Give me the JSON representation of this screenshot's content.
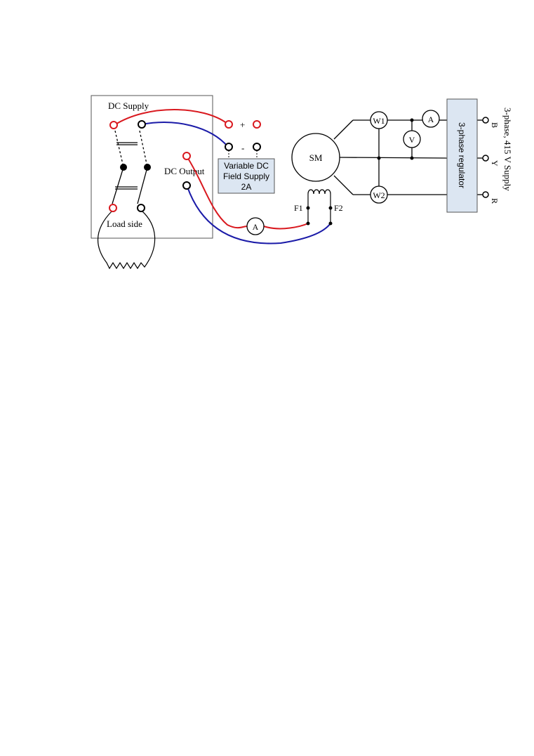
{
  "labels": {
    "dc_supply": "DC Supply",
    "load_side": "Load side",
    "dc_output": "DC Output",
    "plus": "+",
    "minus": "-",
    "field_supply_line1": "Variable DC",
    "field_supply_line2": "Field Supply",
    "field_supply_line3": "2A",
    "machine": "SM",
    "f1": "F1",
    "f2": "F2",
    "ammeter_field": "A",
    "ammeter_line": "A",
    "voltmeter": "V",
    "wattmeter_1": "W1",
    "wattmeter_2": "W2",
    "regulator": "3-phase regulator",
    "phase_b": "B",
    "phase_y": "Y",
    "phase_r": "R",
    "supply": "3-phase, 415 V Supply"
  },
  "colors": {
    "positive_wire": "#d9191f",
    "negative_wire": "#1b1ba8",
    "box_fill": "#dce6f2",
    "line": "#000000"
  }
}
